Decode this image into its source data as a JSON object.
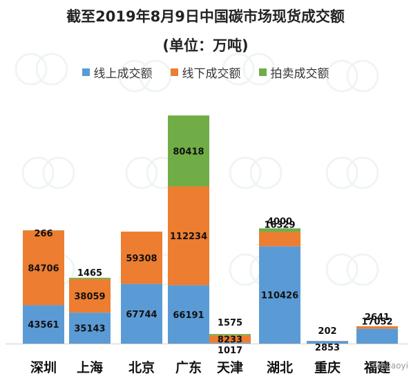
{
  "chart_data": {
    "type": "bar",
    "stacked": true,
    "title": "截至2019年8月9日中国碳市场现货成交额",
    "subtitle": "(单位：万吨)",
    "categories": [
      "深圳",
      "上海",
      "北京",
      "广东",
      "天津",
      "湖北",
      "重庆",
      "福建"
    ],
    "series": [
      {
        "name": "线上成交额",
        "color": "#5B9BD5",
        "values": [
          43561,
          35143,
          67744,
          66191,
          1017,
          110426,
          2853,
          17052
        ]
      },
      {
        "name": "线下成交额",
        "color": "#ED7D31",
        "values": [
          84706,
          38059,
          59308,
          112234,
          8233,
          16329,
          202,
          2641
        ]
      },
      {
        "name": "拍卖成交额",
        "color": "#70AD47",
        "values": [
          266,
          1465,
          0,
          80418,
          1575,
          4000,
          0,
          0
        ]
      }
    ],
    "grid": false,
    "legend": "top"
  },
  "watermark": {
    "text": "tanjiaoyi"
  }
}
